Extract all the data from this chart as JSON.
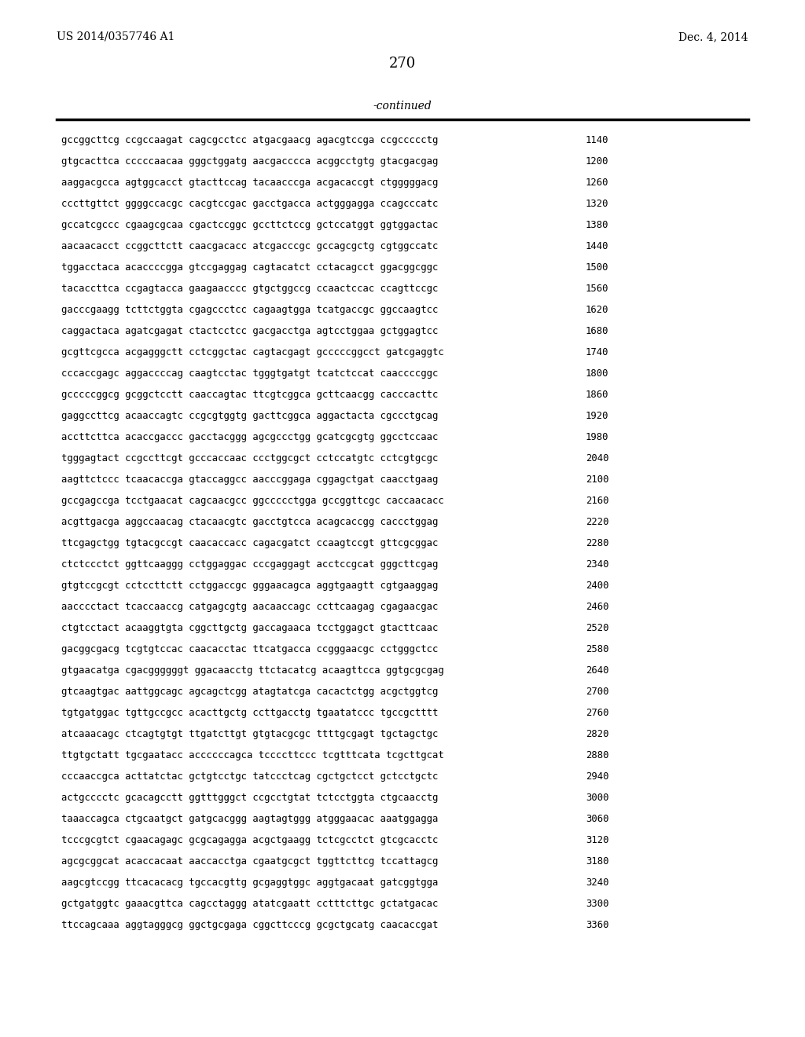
{
  "header_left": "US 2014/0357746 A1",
  "header_right": "Dec. 4, 2014",
  "page_number": "270",
  "continued_text": "-continued",
  "background_color": "#ffffff",
  "text_color": "#000000",
  "font_size_header": 10.0,
  "font_size_page": 13.0,
  "font_size_continued": 10.0,
  "font_size_sequence": 8.8,
  "sequence_lines": [
    [
      "gccggcttcg ccgccaagat cagcgcctcc atgacgaacg agacgtccga ccgccccctg",
      "1140"
    ],
    [
      "gtgcacttca cccccaacaa gggctggatg aacgacccca acggcctgtg gtacgacgag",
      "1200"
    ],
    [
      "aaggacgcca agtggcacct gtacttccag tacaacccga acgacaccgt ctgggggacg",
      "1260"
    ],
    [
      "cccttgttct ggggccacgc cacgtccgac gacctgacca actgggagga ccagcccatc",
      "1320"
    ],
    [
      "gccatcgccc cgaagcgcaa cgactccggc gccttctccg gctccatggt ggtggactac",
      "1380"
    ],
    [
      "aacaacacct ccggcttctt caacgacacc atcgacccgc gccagcgctg cgtggccatc",
      "1440"
    ],
    [
      "tggacctaca acaccccgga gtccgaggag cagtacatct cctacagcct ggacggcggc",
      "1500"
    ],
    [
      "tacaccttca ccgagtacca gaagaacccc gtgctggccg ccaactccac ccagttccgc",
      "1560"
    ],
    [
      "gacccgaagg tcttctggta cgagccctcc cagaagtgga tcatgaccgc ggccaagtcc",
      "1620"
    ],
    [
      "caggactaca agatcgagat ctactcctcc gacgacctga agtcctggaa gctggagtcc",
      "1680"
    ],
    [
      "gcgttcgcca acgagggctt cctcggctac cagtacgagt gcccccggcct gatcgaggtc",
      "1740"
    ],
    [
      "cccaccgagc aggaccccag caagtcctac tgggtgatgt tcatctccat caaccccggc",
      "1800"
    ],
    [
      "gcccccggcg gcggctcctt caaccagtac ttcgtcggca gcttcaacgg cacccacttc",
      "1860"
    ],
    [
      "gaggccttcg acaaccagtc ccgcgtggtg gacttcggca aggactacta cgccctgcag",
      "1920"
    ],
    [
      "accttcttca acaccgaccc gacctacggg agcgccctgg gcatcgcgtg ggcctccaac",
      "1980"
    ],
    [
      "tgggagtact ccgccttcgt gcccaccaac ccctggcgct cctccatgtc cctcgtgcgc",
      "2040"
    ],
    [
      "aagttctccc tcaacaccga gtaccaggcc aacccggaga cggagctgat caacctgaag",
      "2100"
    ],
    [
      "gccgagccga tcctgaacat cagcaacgcc ggccccctgga gccggttcgc caccaacacc",
      "2160"
    ],
    [
      "acgttgacga aggccaacag ctacaacgtc gacctgtcca acagcaccgg caccctggag",
      "2220"
    ],
    [
      "ttcgagctgg tgtacgccgt caacaccacc cagacgatct ccaagtccgt gttcgcggac",
      "2280"
    ],
    [
      "ctctccctct ggttcaaggg cctggaggac cccgaggagt acctccgcat gggcttcgag",
      "2340"
    ],
    [
      "gtgtccgcgt cctccttctt cctggaccgc gggaacagca aggtgaagtt cgtgaaggag",
      "2400"
    ],
    [
      "aacccctact tcaccaaccg catgagcgtg aacaaccagc ccttcaagag cgagaacgac",
      "2460"
    ],
    [
      "ctgtcctact acaaggtgta cggcttgctg gaccagaaca tcctggagct gtacttcaac",
      "2520"
    ],
    [
      "gacggcgacg tcgtgtccac caacacctac ttcatgacca ccgggaacgc cctgggctcc",
      "2580"
    ],
    [
      "gtgaacatga cgacggggggt ggacaacctg ttctacatcg acaagttcca ggtgcgcgag",
      "2640"
    ],
    [
      "gtcaagtgac aattggcagc agcagctcgg atagtatcga cacactctgg acgctggtcg",
      "2700"
    ],
    [
      "tgtgatggac tgttgccgcc acacttgctg ccttgacctg tgaatatccc tgccgctttt",
      "2760"
    ],
    [
      "atcaaacagc ctcagtgtgt ttgatcttgt gtgtacgcgc ttttgcgagt tgctagctgc",
      "2820"
    ],
    [
      "ttgtgctatt tgcgaatacc accccccagca tccccttccc tcgtttcata tcgcttgcat",
      "2880"
    ],
    [
      "cccaaccgca acttatctac gctgtcctgc tatccctcag cgctgctcct gctcctgctc",
      "2940"
    ],
    [
      "actgcccctc gcacagcctt ggtttgggct ccgcctgtat tctcctggta ctgcaacctg",
      "3000"
    ],
    [
      "taaaccagca ctgcaatgct gatgcacggg aagtagtggg atgggaacac aaatggagga",
      "3060"
    ],
    [
      "tcccgcgtct cgaacagagc gcgcagagga acgctgaagg tctcgcctct gtcgcacctc",
      "3120"
    ],
    [
      "agcgcggcat acaccacaat aaccacctga cgaatgcgct tggttcttcg tccattagcg",
      "3180"
    ],
    [
      "aagcgtccgg ttcacacacg tgccacgttg gcgaggtggc aggtgacaat gatcggtgga",
      "3240"
    ],
    [
      "gctgatggtc gaaacgttca cagcctaggg atatcgaatt cctttcttgc gctatgacac",
      "3300"
    ],
    [
      "ttccagcaaa aggtagggcg ggctgcgaga cggcttcccg gcgctgcatg caacaccgat",
      "3360"
    ]
  ]
}
